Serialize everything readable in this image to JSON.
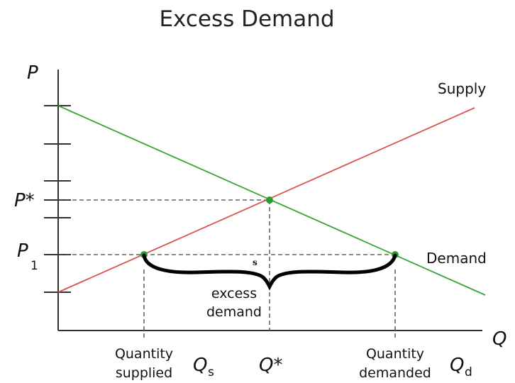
{
  "title": "Excess Demand",
  "axes": {
    "y_label": "P",
    "x_label": "Q"
  },
  "labels": {
    "p_star": "P*",
    "p1_main": "P",
    "p1_sub": "1",
    "q_star": "Q*",
    "qs_main": "Q",
    "qs_sub": "s",
    "qd_main": "Q",
    "qd_sub": "d",
    "supply": "Supply",
    "demand": "Demand",
    "excess_line1": "excess",
    "excess_line2": "demand",
    "brace_mark": "s",
    "qty_supplied_line1": "Quantity",
    "qty_supplied_line2": "supplied",
    "qty_demanded_line1": "Quantity",
    "qty_demanded_line2": "demanded"
  },
  "colors": {
    "supply": "#d9534f",
    "demand": "#3aa535",
    "axis": "#333333",
    "points": "#2e9a33"
  }
}
